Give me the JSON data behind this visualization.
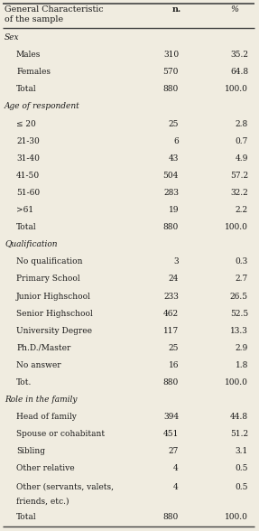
{
  "title_col1": "General Characteristic\nof the sample",
  "title_col2": "n.",
  "title_col3": "%",
  "rows": [
    {
      "label": "Sex",
      "n": "",
      "pct": "",
      "style": "italic",
      "indent": 0
    },
    {
      "label": "Males",
      "n": "310",
      "pct": "35.2",
      "style": "normal",
      "indent": 1
    },
    {
      "label": "Females",
      "n": "570",
      "pct": "64.8",
      "style": "normal",
      "indent": 1
    },
    {
      "label": "Total",
      "n": "880",
      "pct": "100.0",
      "style": "normal",
      "indent": 1
    },
    {
      "label": "Age of respondent",
      "n": "",
      "pct": "",
      "style": "italic",
      "indent": 0
    },
    {
      "label": "≤ 20",
      "n": "25",
      "pct": "2.8",
      "style": "normal",
      "indent": 1
    },
    {
      "label": "21-30",
      "n": "6",
      "pct": "0.7",
      "style": "normal",
      "indent": 1
    },
    {
      "label": "31-40",
      "n": "43",
      "pct": "4.9",
      "style": "normal",
      "indent": 1
    },
    {
      "label": "41-50",
      "n": "504",
      "pct": "57.2",
      "style": "normal",
      "indent": 1
    },
    {
      "label": "51-60",
      "n": "283",
      "pct": "32.2",
      "style": "normal",
      "indent": 1
    },
    {
      "label": ">61",
      "n": "19",
      "pct": "2.2",
      "style": "normal",
      "indent": 1
    },
    {
      "label": "Total",
      "n": "880",
      "pct": "100.0",
      "style": "normal",
      "indent": 1
    },
    {
      "label": "Qualification",
      "n": "",
      "pct": "",
      "style": "italic",
      "indent": 0
    },
    {
      "label": "No qualification",
      "n": "3",
      "pct": "0.3",
      "style": "normal",
      "indent": 1
    },
    {
      "label": "Primary School",
      "n": "24",
      "pct": "2.7",
      "style": "normal",
      "indent": 1
    },
    {
      "label": "Junior Highschool",
      "n": "233",
      "pct": "26.5",
      "style": "normal",
      "indent": 1
    },
    {
      "label": "Senior Highschool",
      "n": "462",
      "pct": "52.5",
      "style": "normal",
      "indent": 1
    },
    {
      "label": "University Degree",
      "n": "117",
      "pct": "13.3",
      "style": "normal",
      "indent": 1
    },
    {
      "label": "Ph.D./Master",
      "n": "25",
      "pct": "2.9",
      "style": "normal",
      "indent": 1
    },
    {
      "label": "No answer",
      "n": "16",
      "pct": "1.8",
      "style": "normal",
      "indent": 1
    },
    {
      "label": "Tot.",
      "n": "880",
      "pct": "100.0",
      "style": "normal",
      "indent": 1
    },
    {
      "label": "Role in the family",
      "n": "",
      "pct": "",
      "style": "italic",
      "indent": 0
    },
    {
      "label": "Head of family",
      "n": "394",
      "pct": "44.8",
      "style": "normal",
      "indent": 1
    },
    {
      "label": "Spouse or cohabitant",
      "n": "451",
      "pct": "51.2",
      "style": "normal",
      "indent": 1
    },
    {
      "label": "Sibling",
      "n": "27",
      "pct": "3.1",
      "style": "normal",
      "indent": 1
    },
    {
      "label": "Other relative",
      "n": "4",
      "pct": "0.5",
      "style": "normal",
      "indent": 1
    },
    {
      "label": "Other (servants, valets,\nfriends, etc.)",
      "n": "4",
      "pct": "0.5",
      "style": "normal",
      "indent": 1
    },
    {
      "label": "Total",
      "n": "880",
      "pct": "100.0",
      "style": "normal",
      "indent": 1
    }
  ],
  "bg_color": "#f0ece0",
  "text_color": "#1a1a1a",
  "line_color": "#444444",
  "font_family": "DejaVu Serif",
  "fontsize": 6.5,
  "header_fontsize": 6.8
}
